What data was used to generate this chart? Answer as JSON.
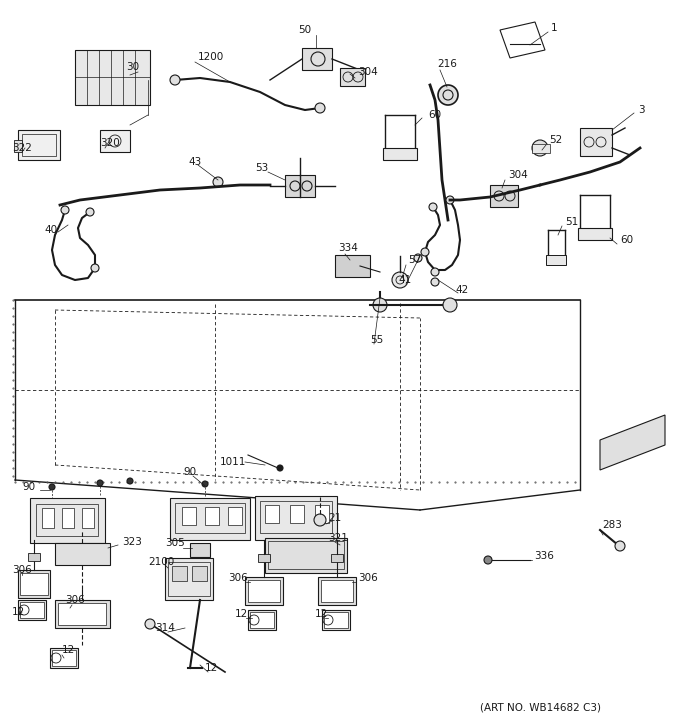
{
  "art_no": "(ART NO. WB14682 C3)",
  "bg_color": "#ffffff",
  "line_color": "#1a1a1a",
  "fig_width": 6.8,
  "fig_height": 7.25,
  "dpi": 100,
  "imgw": 680,
  "imgh": 725
}
